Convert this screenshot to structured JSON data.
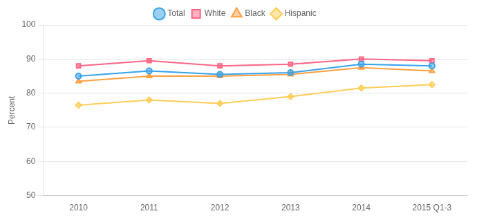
{
  "chart_data": {
    "type": "line",
    "categories": [
      "2010",
      "2011",
      "2012",
      "2013",
      "2014",
      "2015 Q1-3"
    ],
    "series": [
      {
        "name": "Total",
        "values": [
          85.0,
          86.5,
          85.5,
          86.0,
          88.5,
          88.0
        ],
        "marker": "circle"
      },
      {
        "name": "White",
        "values": [
          88.0,
          89.5,
          88.0,
          88.5,
          90.0,
          89.5
        ],
        "marker": "square"
      },
      {
        "name": "Black",
        "values": [
          83.5,
          85.0,
          85.0,
          85.5,
          87.5,
          86.5
        ],
        "marker": "triangle"
      },
      {
        "name": "Hispanic",
        "values": [
          76.5,
          78.0,
          77.0,
          79.0,
          81.5,
          82.5
        ],
        "marker": "diamond"
      }
    ],
    "ylabel": "Percent",
    "ylim": [
      50,
      100
    ],
    "yticks": [
      50,
      60,
      70,
      80,
      90,
      100
    ],
    "grid": true,
    "legend": "top"
  }
}
